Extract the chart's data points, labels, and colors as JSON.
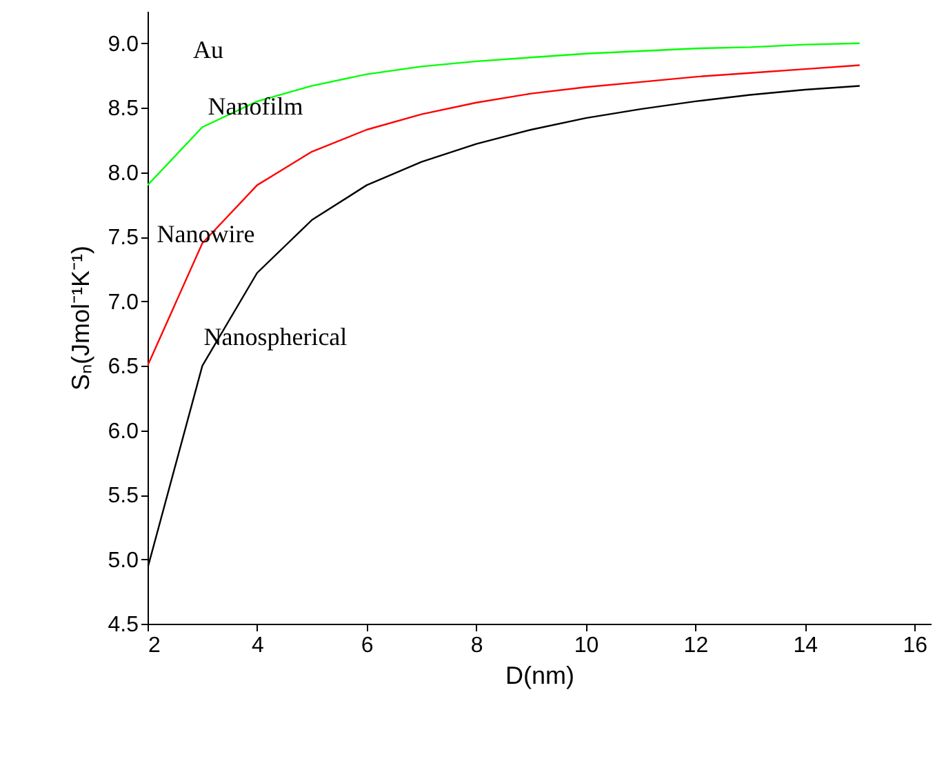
{
  "chart_data": {
    "type": "line",
    "xlabel": "D(nm)",
    "ylabel": "Sₙ(Jmol⁻¹K⁻¹)",
    "x": [
      2,
      3,
      4,
      5,
      6,
      7,
      8,
      9,
      10,
      11,
      12,
      13,
      14,
      15
    ],
    "series": [
      {
        "name": "Nanofilm",
        "color": "#00ff00",
        "values": [
          7.9,
          8.35,
          8.55,
          8.67,
          8.76,
          8.82,
          8.86,
          8.89,
          8.92,
          8.94,
          8.96,
          8.97,
          8.99,
          9.0
        ]
      },
      {
        "name": "Nanowire",
        "color": "#ff0000",
        "values": [
          6.5,
          7.45,
          7.9,
          8.16,
          8.33,
          8.45,
          8.54,
          8.61,
          8.66,
          8.7,
          8.74,
          8.77,
          8.8,
          8.83
        ]
      },
      {
        "name": "Nanospherical",
        "color": "#000000",
        "values": [
          4.93,
          6.5,
          7.22,
          7.63,
          7.9,
          8.08,
          8.22,
          8.33,
          8.42,
          8.49,
          8.55,
          8.6,
          8.64,
          8.67
        ]
      }
    ],
    "xlim": [
      2,
      16.3
    ],
    "xticks": [
      2,
      4,
      6,
      8,
      10,
      12,
      14,
      16
    ],
    "ylim": [
      4.5,
      9.25
    ],
    "yticks": [
      {
        "value": 4.5,
        "label": "4.5"
      },
      {
        "value": 5,
        "label": "5.0"
      },
      {
        "value": 5.5,
        "label": "5.5"
      },
      {
        "value": 6,
        "label": "6.0"
      },
      {
        "value": 6.5,
        "label": "6.5"
      },
      {
        "value": 7,
        "label": "7.0"
      },
      {
        "value": 7.5,
        "label": "7.5"
      },
      {
        "value": 8,
        "label": "8.0"
      },
      {
        "value": 8.5,
        "label": "8.5"
      },
      {
        "value": 9,
        "label": "9.0"
      }
    ],
    "annotations": [
      "Au"
    ],
    "grid": false,
    "legend": false,
    "marker": "none",
    "line_style": "solid"
  }
}
